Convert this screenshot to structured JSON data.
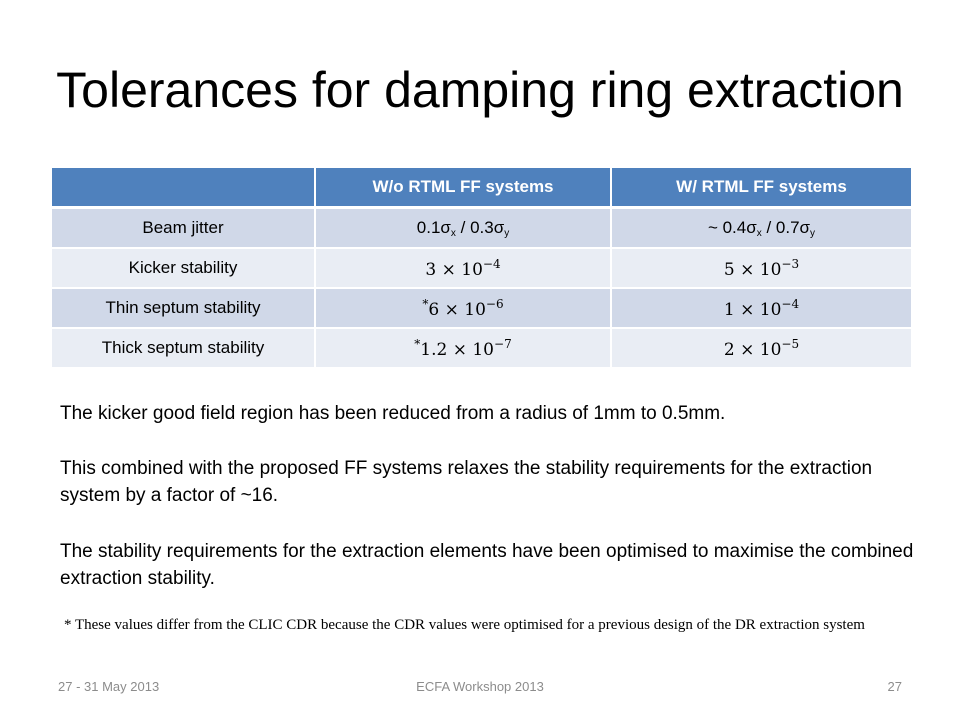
{
  "slide": {
    "title": "Tolerances for damping ring extraction"
  },
  "table": {
    "headers": [
      "",
      "W/o RTML FF systems",
      "W/ RTML FF systems"
    ],
    "rows": [
      {
        "label": "Beam jitter",
        "wo": {
          "sx": "0.1σ",
          "sep": " / 0.3σ",
          "x": "x",
          "y": "y"
        },
        "w": {
          "prefix": "~ 0.4σ",
          "sep": " / 0.7σ",
          "x": "x",
          "y": "y"
        }
      },
      {
        "label": "Kicker stability",
        "wo": {
          "mant": "3 × 10",
          "exp": "−4"
        },
        "w": {
          "mant": "5 × 10",
          "exp": "−3"
        }
      },
      {
        "label": "Thin septum stability",
        "wo": {
          "star": "*",
          "mant": "6 × 10",
          "exp": "−6"
        },
        "w": {
          "mant": "1 × 10",
          "exp": "−4"
        }
      },
      {
        "label": "Thick septum stability",
        "wo": {
          "star": "*",
          "mant": "1.2 × 10",
          "exp": "−7"
        },
        "w": {
          "mant": "2 × 10",
          "exp": "−5"
        }
      }
    ]
  },
  "body": {
    "p1": "The kicker good field region has been reduced from a radius of 1mm to 0.5mm.",
    "p2": "This combined with the proposed FF systems relaxes the stability requirements for the extraction system by a factor of ~16.",
    "p3": "The stability requirements for the extraction elements have been optimised to maximise the combined extraction stability.",
    "note": "* These values differ from the CLIC CDR because the CDR values were optimised for a previous design of the DR extraction system"
  },
  "footer": {
    "date": "27 - 31 May 2013",
    "event": "ECFA Workshop 2013",
    "page": "27"
  },
  "colors": {
    "header_bg": "#4f81bd",
    "row_dark": "#d0d8e8",
    "row_light": "#e9edf4"
  }
}
